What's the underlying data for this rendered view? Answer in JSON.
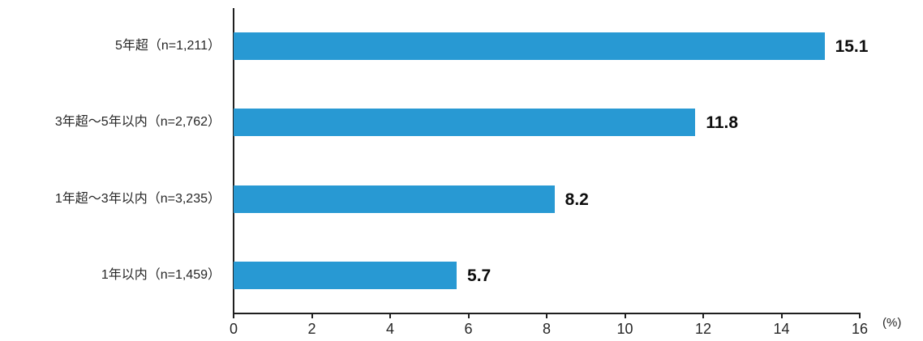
{
  "chart_data": {
    "type": "bar",
    "orientation": "horizontal",
    "categories": [
      "5年超（n=1,211）",
      "3年超～5年以内（n=2,762）",
      "1年超～3年以内（n=3,235）",
      "1年以内（n=1,459）"
    ],
    "values": [
      15.1,
      11.8,
      8.2,
      5.7
    ],
    "value_labels": [
      "15.1",
      "11.8",
      "8.2",
      "5.7"
    ],
    "x_ticks": [
      "0",
      "2",
      "4",
      "6",
      "8",
      "10",
      "12",
      "14",
      "16"
    ],
    "xlim": [
      0,
      16
    ],
    "x_unit_label": "(%)",
    "grid": false,
    "legend": false
  },
  "colors": {
    "bar": "#2899d3",
    "axis": "#1f1f1f",
    "tick_text": "#262626",
    "category_text": "#262626",
    "value_text": "#0d0d0d"
  }
}
